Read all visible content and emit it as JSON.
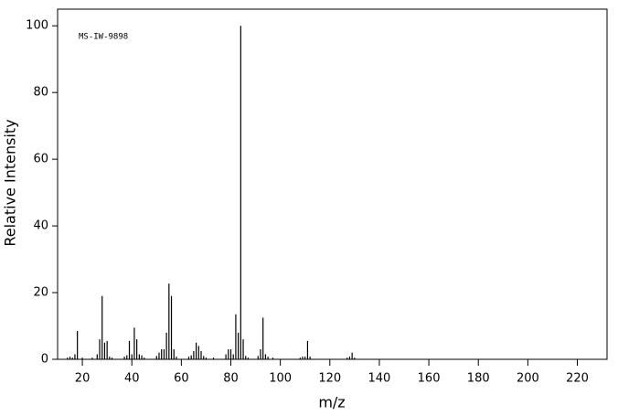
{
  "chart_data": {
    "type": "bar",
    "annotation": "MS-IW-9898",
    "x_label": "m/z",
    "y_label": "Relative Intensity",
    "x": [
      14,
      15,
      16,
      17,
      18,
      20,
      24,
      26,
      27,
      28,
      29,
      30,
      31,
      32,
      37,
      38,
      39,
      40,
      41,
      42,
      43,
      44,
      45,
      50,
      51,
      52,
      53,
      54,
      55,
      56,
      57,
      58,
      63,
      64,
      65,
      66,
      67,
      68,
      69,
      70,
      73,
      78,
      79,
      80,
      81,
      82,
      83,
      84,
      85,
      86,
      87,
      91,
      92,
      93,
      94,
      95,
      97,
      108,
      109,
      110,
      111,
      112,
      127,
      128,
      129,
      130
    ],
    "values": [
      0.5,
      0.8,
      0.5,
      1.5,
      8.5,
      0.5,
      0.5,
      1.5,
      6,
      19,
      5,
      5.5,
      0.8,
      0.5,
      0.8,
      1.2,
      5.5,
      1.5,
      9.5,
      6,
      1.5,
      1.2,
      0.5,
      1,
      2,
      3,
      3,
      8,
      22.7,
      19,
      3,
      0.8,
      0.8,
      1.2,
      2.5,
      5,
      4,
      2.5,
      1,
      0.5,
      0.5,
      1.5,
      3,
      3,
      1.5,
      13.5,
      8,
      100,
      6,
      1,
      0.5,
      1,
      3,
      12.5,
      1.5,
      0.8,
      0.5,
      0.5,
      0.8,
      0.8,
      5.5,
      0.8,
      0.5,
      0.8,
      2,
      0.5
    ],
    "color": "#000000",
    "xlim": [
      10,
      232
    ],
    "ylim": [
      0,
      105
    ],
    "xticks": [
      20,
      40,
      60,
      80,
      100,
      120,
      140,
      160,
      180,
      200,
      220
    ],
    "yticks": [
      0,
      20,
      40,
      60,
      80,
      100
    ],
    "grid": false
  }
}
